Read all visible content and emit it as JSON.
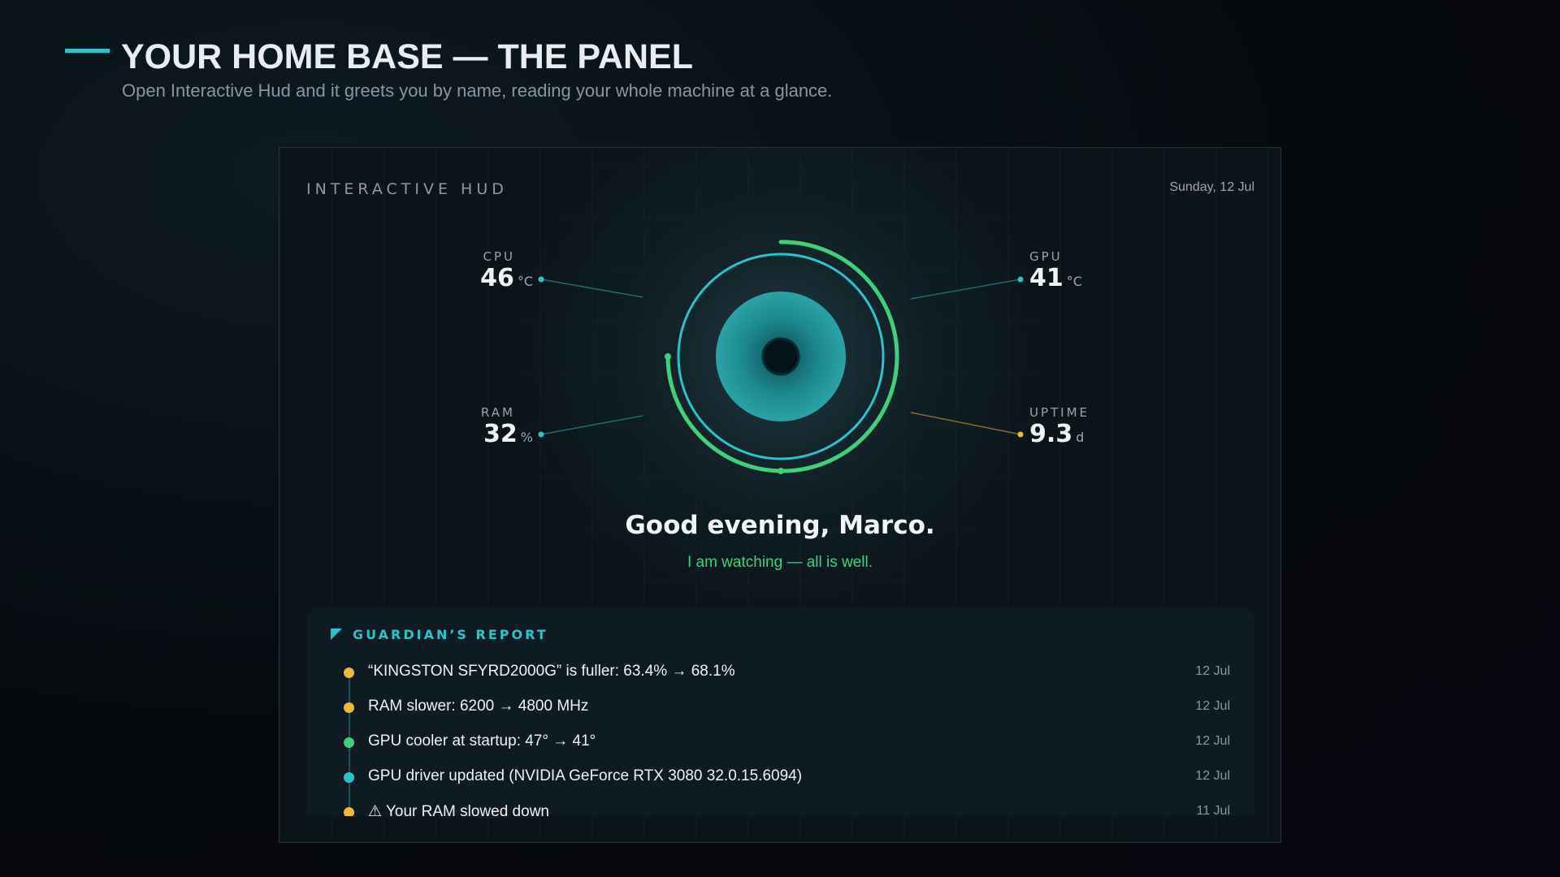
{
  "header": {
    "title": "YOUR HOME BASE — THE PANEL",
    "subtitle": "Open Interactive Hud and it greets you by name, reading your whole machine at a glance."
  },
  "panel": {
    "brand": "INTERACTIVE HUD",
    "date": "Sunday, 12 Jul",
    "metrics": [
      {
        "label": "CPU",
        "value": 46,
        "unit": "°C"
      },
      {
        "label": "GPU",
        "value": 41,
        "unit": "°C"
      },
      {
        "label": "RAM",
        "value": 32,
        "unit": "%"
      },
      {
        "label": "UPTIME",
        "value": 9.3,
        "unit": "d"
      }
    ],
    "greeting": "Good evening, Marco.",
    "status": "I am watching — all is well.",
    "report": {
      "title": "GUARDIAN’S REPORT",
      "items": [
        {
          "text": "“KINGSTON SFYRD2000G” is fuller: 63.4% → 68.1%",
          "date": "12 Jul",
          "color": "#f0b93a"
        },
        {
          "text": "RAM slower: 6200 → 4800 MHz",
          "date": "12 Jul",
          "color": "#f0b93a"
        },
        {
          "text": "GPU cooler at startup: 47° → 41°",
          "date": "12 Jul",
          "color": "#3fd07a"
        },
        {
          "text": "GPU driver updated (NVIDIA GeForce RTX 3080 32.0.15.6094)",
          "date": "12 Jul",
          "color": "#2bc3c9"
        },
        {
          "text": "⚠ Your RAM slowed down",
          "date": "11 Jul",
          "color": "#f0b93a"
        }
      ]
    }
  }
}
